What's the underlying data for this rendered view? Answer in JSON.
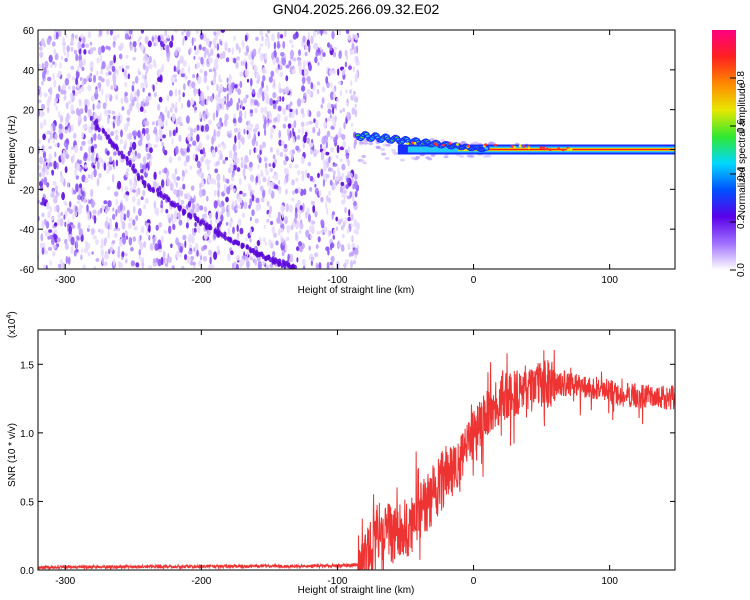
{
  "figure_title": "GN04.2025.266.09.32.E02",
  "chart_data": [
    {
      "type": "heatmap",
      "title": "GN04.2025.266.09.32.E02",
      "xlabel": "Height of straight line (km)",
      "ylabel": "Frequency (Hz)",
      "xlim": [
        -320,
        148
      ],
      "ylim": [
        -60,
        60
      ],
      "xticks": [
        -300,
        -200,
        -100,
        0,
        100
      ],
      "xtick_labels": [
        "-300",
        "-200",
        "-100",
        "0",
        "100"
      ],
      "yticks": [
        -60,
        -40,
        -20,
        0,
        20,
        40,
        60
      ],
      "ytick_labels": [
        "-60",
        "-40",
        "-20",
        "0",
        "20",
        "40",
        "60"
      ],
      "noise_region_x": [
        -320,
        -85
      ],
      "signal_start_x": -85,
      "carrier_frequency_hz": 0,
      "faint_trace": [
        [
          -280,
          15
        ],
        [
          -240,
          -18
        ],
        [
          -200,
          -37
        ],
        [
          -160,
          -52
        ],
        [
          -130,
          -60
        ]
      ],
      "colorbar": {
        "label": "Normalized spectral amplitude",
        "range": [
          0,
          1
        ],
        "ticks": [
          0.0,
          0.2,
          0.4,
          0.6,
          0.8
        ],
        "tick_labels": [
          "0.0",
          "0.2",
          "0.4",
          "0.6",
          "0.8"
        ],
        "colormap": [
          "#ffffff",
          "#a070ff",
          "#5a00e8",
          "#0050ff",
          "#00d8ff",
          "#30e830",
          "#e8e800",
          "#ff8800",
          "#ff2020",
          "#ff0080"
        ]
      }
    },
    {
      "type": "line",
      "xlabel": "Height of straight line (km)",
      "ylabel": "SNR (10 * v/v)",
      "y_multiplier_label": "(x10",
      "y_multiplier_exp": "4",
      "xlim": [
        -320,
        148
      ],
      "ylim": [
        0,
        1.75
      ],
      "xticks": [
        -300,
        -200,
        -100,
        0,
        100
      ],
      "xtick_labels": [
        "-300",
        "-200",
        "-100",
        "0",
        "100"
      ],
      "yticks": [
        0.0,
        0.5,
        1.0,
        1.5
      ],
      "ytick_labels": [
        "0.0",
        "0.5",
        "1.0",
        "1.5"
      ],
      "series": [
        {
          "name": "SNR",
          "color": "#ee3333",
          "x": [
            -320,
            -100,
            -80,
            -75,
            -70,
            -65,
            -60,
            -50,
            -40,
            -30,
            -20,
            -10,
            0,
            10,
            20,
            30,
            40,
            50,
            60,
            70,
            80,
            90,
            100,
            110,
            120,
            130,
            148
          ],
          "y": [
            0.02,
            0.03,
            0.04,
            0.12,
            0.3,
            0.28,
            0.26,
            0.3,
            0.4,
            0.55,
            0.7,
            0.8,
            1.0,
            1.15,
            1.25,
            1.3,
            1.33,
            1.35,
            1.36,
            1.35,
            1.33,
            1.32,
            1.3,
            1.28,
            1.27,
            1.26,
            1.25
          ]
        }
      ]
    }
  ]
}
